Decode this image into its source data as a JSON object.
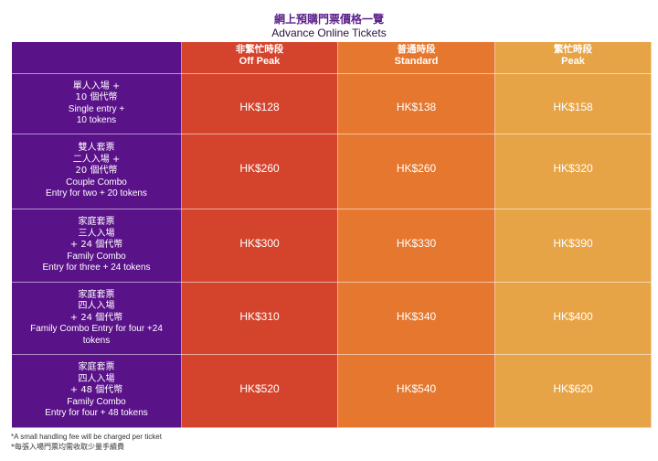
{
  "title": {
    "zh": "網上預購門票價格一覽",
    "en": "Advance Online Tickets"
  },
  "columns": [
    {
      "zh": "非繁忙時段",
      "en": "Off Peak",
      "color": "#d4442c"
    },
    {
      "zh": "普通時段",
      "en": "Standard",
      "color": "#e6772f"
    },
    {
      "zh": "繁忙時段",
      "en": "Peak",
      "color": "#e7a446"
    }
  ],
  "rows": [
    {
      "label_lines": [
        "單人入場 +",
        "10 個代幣",
        "Single entry +",
        "10 tokens"
      ],
      "prices": [
        "HK$128",
        "HK$138",
        "HK$158"
      ]
    },
    {
      "label_lines": [
        "雙人套票",
        "二人入場 +",
        "20 個代幣",
        "Couple Combo",
        "Entry for two + 20 tokens"
      ],
      "prices": [
        "HK$260",
        "HK$260",
        "HK$320"
      ]
    },
    {
      "label_lines": [
        "家庭套票",
        "三人入場",
        "+ 24 個代幣",
        "Family Combo",
        "Entry for three + 24 tokens"
      ],
      "prices": [
        "HK$300",
        "HK$330",
        "HK$390"
      ]
    },
    {
      "label_lines": [
        "家庭套票",
        "四人入場",
        "+ 24 個代幣",
        "Family Combo Entry for four +24",
        "tokens"
      ],
      "prices": [
        "HK$310",
        "HK$340",
        "HK$400"
      ]
    },
    {
      "label_lines": [
        "家庭套票",
        "四人入場",
        "+ 48 個代幣",
        "Family Combo",
        "Entry for four + 48 tokens"
      ],
      "prices": [
        "HK$520",
        "HK$540",
        "HK$620"
      ]
    }
  ],
  "footnotes": {
    "en": "*A small handling fee will be charged per ticket",
    "zh": "*每張入場門票均需收取少量手續費"
  },
  "colors": {
    "label_column": "#5a1289",
    "title": "#5b1f8a"
  }
}
